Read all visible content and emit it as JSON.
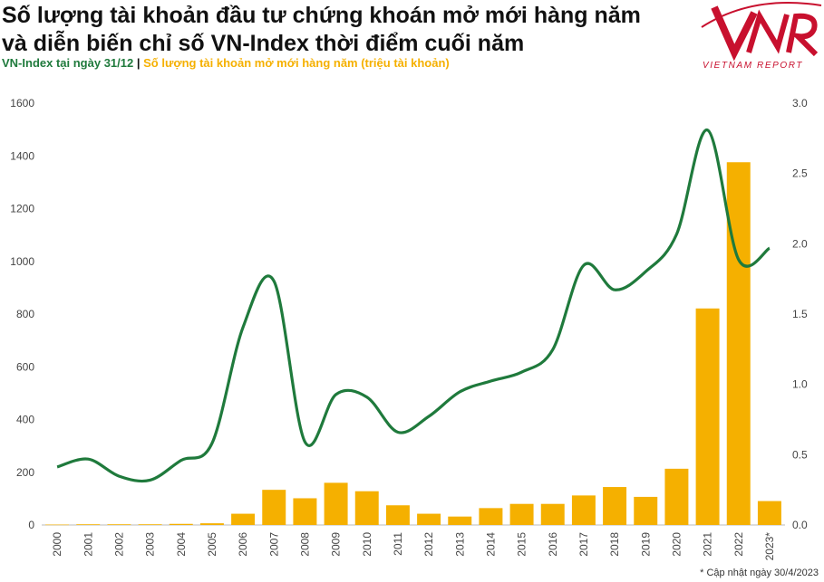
{
  "header": {
    "title_line1": "Số lượng tài khoản đầu tư chứng khoán mở mới hàng năm",
    "title_line2": "và diễn biến chỉ số VN-Index thời điểm cuối năm",
    "subtitle_green": "VN-Index tại ngày 31/12",
    "subtitle_separator": " | ",
    "subtitle_gold": "Số lượng tài khoản mở mới hàng năm (triệu tài khoản)"
  },
  "logo": {
    "text": "VIETNAM REPORT",
    "color": "#c8102e",
    "icon": "vnr-logo-icon"
  },
  "footnote": "* Cập nhật ngày 30/4/2023",
  "colors": {
    "line": "#1f7a3c",
    "bar": "#f5b000",
    "axis_text": "#444444",
    "grid": "#dddddd"
  },
  "chart_data": {
    "type": "bar",
    "categories": [
      "2000",
      "2001",
      "2002",
      "2003",
      "2004",
      "2005",
      "2006",
      "2007",
      "2008",
      "2009",
      "2010",
      "2011",
      "2012",
      "2013",
      "2014",
      "2015",
      "2016",
      "2017",
      "2018",
      "2019",
      "2020",
      "2021",
      "2022",
      "2023*"
    ],
    "series": [
      {
        "name": "Số lượng tài khoản mở mới hàng năm (triệu tài khoản)",
        "type": "bar",
        "axis": "right",
        "values": [
          0.003,
          0.005,
          0.005,
          0.005,
          0.008,
          0.012,
          0.08,
          0.25,
          0.19,
          0.3,
          0.24,
          0.14,
          0.08,
          0.06,
          0.12,
          0.15,
          0.15,
          0.21,
          0.27,
          0.2,
          0.4,
          1.54,
          2.58,
          0.17
        ]
      },
      {
        "name": "VN-Index tại ngày 31/12",
        "type": "line",
        "axis": "left",
        "values": [
          220,
          250,
          185,
          170,
          245,
          310,
          750,
          925,
          315,
          495,
          485,
          352,
          412,
          505,
          546,
          580,
          665,
          985,
          892,
          961,
          1103,
          1498,
          1007,
          1050
        ]
      }
    ],
    "y_left": {
      "min": 0,
      "max": 1600,
      "ticks": [
        "0",
        "200",
        "400",
        "600",
        "800",
        "1000",
        "1200",
        "1400",
        "1600"
      ]
    },
    "y_right": {
      "min": 0,
      "max": 3.0,
      "ticks": [
        "0.0",
        "0.5",
        "1.0",
        "1.5",
        "2.0",
        "2.5",
        "3.0"
      ]
    },
    "grid": false
  }
}
